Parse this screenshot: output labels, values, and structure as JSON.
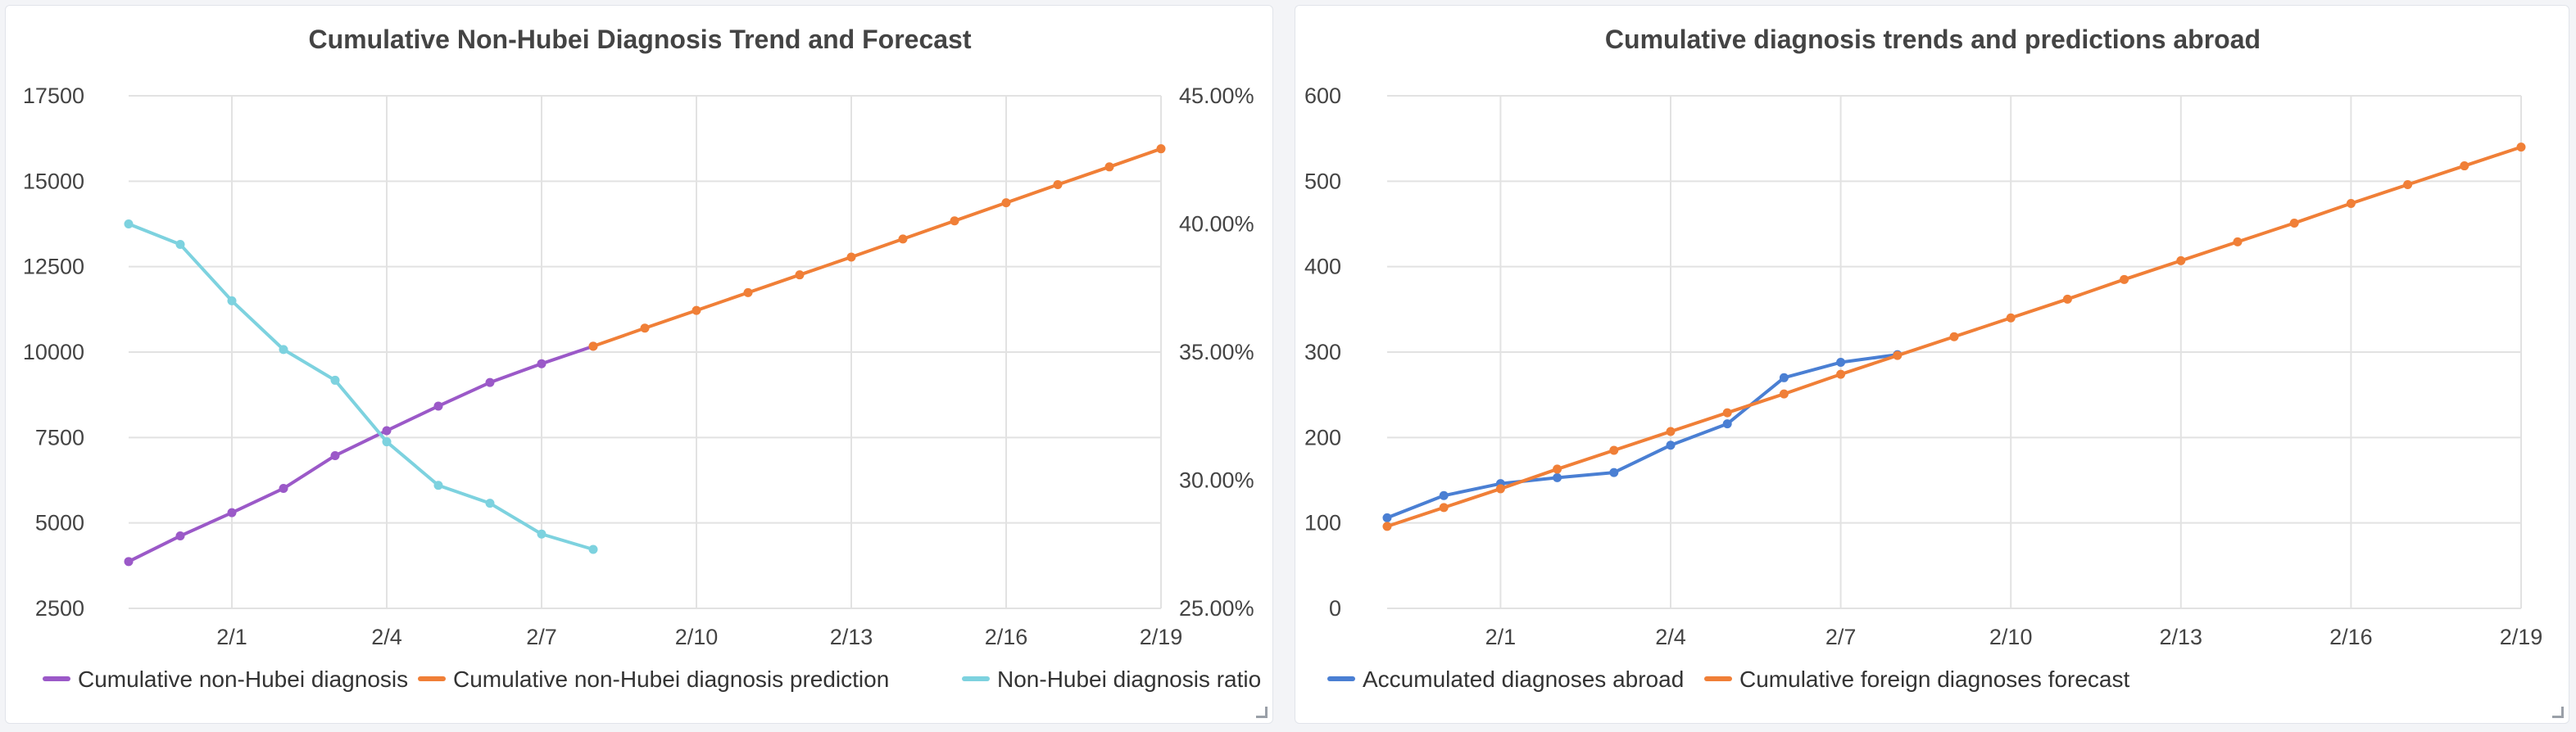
{
  "chart_data": [
    {
      "type": "line",
      "title": "Cumulative Non-Hubei Diagnosis Trend and Forecast",
      "x_ticks": [
        "",
        "2/1",
        "2/4",
        "2/7",
        "2/10",
        "2/13",
        "2/16",
        "2/19"
      ],
      "x_range": [
        0,
        20
      ],
      "y_left": {
        "range": [
          2500,
          17500
        ],
        "ticks": [
          "2500",
          "5000",
          "7500",
          "10000",
          "12500",
          "15000",
          "17500"
        ]
      },
      "y_right": {
        "range": [
          25,
          45
        ],
        "ticks": [
          "25.00%",
          "30.00%",
          "35.00%",
          "40.00%",
          "45.00%"
        ]
      },
      "grid": true,
      "legend": "bottom",
      "series": [
        {
          "name": "Cumulative non-Hubei diagnosis",
          "color": "#9b59c8",
          "axis": "left",
          "x": [
            0,
            1,
            2,
            3,
            4,
            5,
            6,
            7,
            8,
            9
          ],
          "values": [
            3870,
            4620,
            5300,
            6010,
            6970,
            7700,
            8420,
            9110,
            9660,
            10170
          ]
        },
        {
          "name": "Cumulative non-Hubei diagnosis prediction",
          "color": "#f07f37",
          "axis": "left",
          "x": [
            9,
            10,
            11,
            12,
            13,
            14,
            15,
            16,
            17,
            18,
            19,
            20
          ],
          "values": [
            10170,
            10700,
            11220,
            11740,
            12260,
            12780,
            13310,
            13840,
            14370,
            14900,
            15420,
            15950
          ]
        },
        {
          "name": "Non-Hubei diagnosis ratio",
          "color": "#7dd2df",
          "axis": "right",
          "unit": "%",
          "x": [
            0,
            1,
            2,
            3,
            4,
            5,
            6,
            7,
            8,
            9
          ],
          "values": [
            40.0,
            39.2,
            37.0,
            35.1,
            33.9,
            31.5,
            29.8,
            29.1,
            27.9,
            27.3
          ]
        }
      ]
    },
    {
      "type": "line",
      "title": "Cumulative diagnosis trends and predictions abroad",
      "x_ticks": [
        "",
        "2/1",
        "2/4",
        "2/7",
        "2/10",
        "2/13",
        "2/16",
        "2/19"
      ],
      "x_range": [
        0,
        20
      ],
      "y_left": {
        "range": [
          0,
          600
        ],
        "ticks": [
          "0",
          "100",
          "200",
          "300",
          "400",
          "500",
          "600"
        ]
      },
      "grid": true,
      "legend": "bottom",
      "series": [
        {
          "name": "Accumulated diagnoses abroad",
          "color": "#4a7fd3",
          "axis": "left",
          "x": [
            0,
            1,
            2,
            3,
            4,
            5,
            6,
            7,
            8,
            9
          ],
          "values": [
            106,
            132,
            146,
            153,
            159,
            191,
            216,
            270,
            288,
            297
          ]
        },
        {
          "name": "Cumulative foreign diagnoses forecast",
          "color": "#f07f37",
          "axis": "left",
          "x": [
            0,
            1,
            2,
            3,
            4,
            5,
            6,
            7,
            8,
            9,
            10,
            11,
            12,
            13,
            14,
            15,
            16,
            17,
            18,
            19,
            20
          ],
          "values": [
            96,
            118,
            140,
            163,
            185,
            207,
            229,
            251,
            274,
            296,
            318,
            340,
            362,
            385,
            407,
            429,
            451,
            474,
            496,
            518,
            540
          ]
        }
      ]
    }
  ]
}
